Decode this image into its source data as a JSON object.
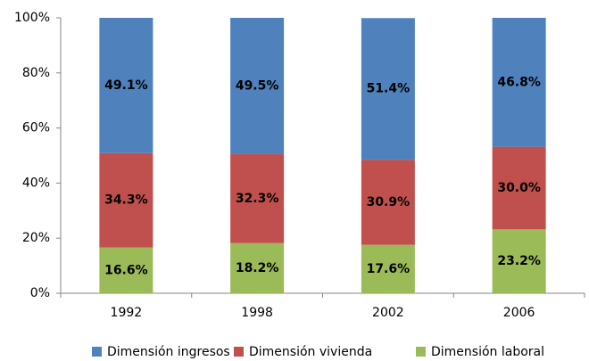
{
  "chart_data": {
    "type": "stacked_bar_100",
    "categories": [
      "1992",
      "1998",
      "2002",
      "2006"
    ],
    "series": [
      {
        "name": "Dimensión ingresos",
        "color": "#4f81bd",
        "values": [
          49.1,
          49.5,
          51.4,
          46.8
        ],
        "value_labels": [
          "49.1%",
          "49.5%",
          "51.4%",
          "46.8%"
        ]
      },
      {
        "name": "Dimensión vivienda",
        "color": "#c0504d",
        "values": [
          34.3,
          32.3,
          30.9,
          30.0
        ],
        "value_labels": [
          "34.3%",
          "32.3%",
          "30.9%",
          "30.0%"
        ]
      },
      {
        "name": "Dimensión laboral",
        "color": "#9bbb59",
        "values": [
          16.6,
          18.2,
          17.6,
          23.2
        ],
        "value_labels": [
          "16.6%",
          "18.2%",
          "17.6%",
          "23.2%"
        ]
      }
    ],
    "ylim": [
      0,
      100
    ],
    "yticks": [
      {
        "value": 0,
        "label": "0%"
      },
      {
        "value": 20,
        "label": "20%"
      },
      {
        "value": 40,
        "label": "40%"
      },
      {
        "value": 60,
        "label": "60%"
      },
      {
        "value": 80,
        "label": "80%"
      },
      {
        "value": 100,
        "label": "100%"
      }
    ],
    "legend": "bottom"
  }
}
